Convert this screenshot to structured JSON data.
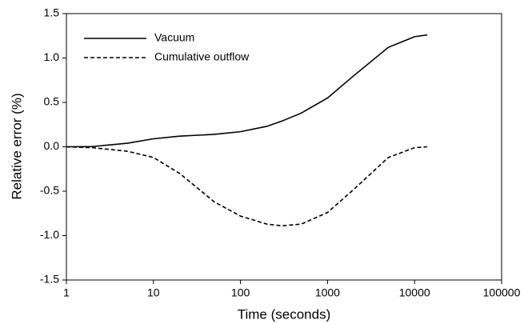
{
  "chart_data": {
    "type": "line",
    "xlabel": "Time (seconds)",
    "ylabel": "Relative error (%)",
    "xscale": "log",
    "x": [
      1,
      2,
      5,
      10,
      20,
      50,
      100,
      200,
      300,
      500,
      1000,
      2000,
      5000,
      10000,
      14000
    ],
    "series": [
      {
        "name": "Vacuum",
        "color": "#000000",
        "style": "solid",
        "values": [
          0,
          0.003,
          0.04,
          0.09,
          0.12,
          0.14,
          0.17,
          0.23,
          0.29,
          0.38,
          0.55,
          0.8,
          1.12,
          1.24,
          1.26
        ]
      },
      {
        "name": "Cumulative outflow",
        "color": "#000000",
        "style": "dashed",
        "values": [
          0,
          -0.01,
          -0.05,
          -0.12,
          -0.3,
          -0.62,
          -0.78,
          -0.87,
          -0.89,
          -0.87,
          -0.74,
          -0.48,
          -0.12,
          -0.01,
          0
        ]
      }
    ],
    "xlim": [
      1,
      100000
    ],
    "xticks": [
      1,
      10,
      100,
      1000,
      10000,
      100000
    ],
    "ylim": [
      -1.5,
      1.5
    ],
    "yticks": [
      1.5,
      {
        "value": 1.0,
        "label": "1.0"
      },
      0.5,
      {
        "value": 0.0,
        "label": "0.0"
      },
      -0.5,
      {
        "value": -1.0,
        "label": "-1.0"
      },
      -1.5
    ],
    "legend": "upper left"
  }
}
